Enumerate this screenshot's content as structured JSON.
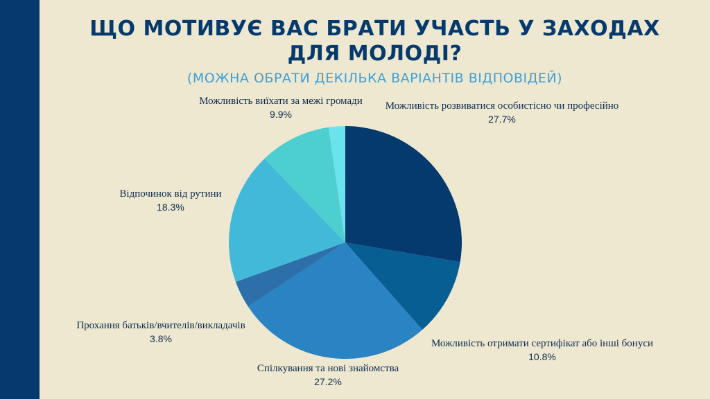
{
  "title_line1": "ЩО МОТИВУЄ ВАС БРАТИ УЧАСТЬ У ЗАХОДАХ",
  "title_line2": "ДЛЯ МОЛОДІ?",
  "subtitle": "(МОЖНА ОБРАТИ ДЕКІЛЬКА ВАРІАНТІВ ВІДПОВІДЕЙ)",
  "colors": {
    "background": "#ede8cf",
    "sidebar": "#063a6e",
    "title": "#063a6e",
    "subtitle": "#3e9fd6"
  },
  "chart_data": {
    "type": "pie",
    "title": "ЩО МОТИВУЄ ВАС БРАТИ УЧАСТЬ У ЗАХОДАХ ДЛЯ МОЛОДІ?",
    "legend": "none",
    "slices": [
      {
        "label": "Можливість розвиватися особистісно чи професійно",
        "value_label": "27.7%",
        "value": 27.7,
        "color": "#053a6e"
      },
      {
        "label": "Можливість отримати сертифікат або інші бонуси",
        "value_label": "10.8%",
        "value": 10.8,
        "color": "#065e92"
      },
      {
        "label": "Спілкування та нові знайомства",
        "value_label": "27.2%",
        "value": 27.2,
        "color": "#2a83c3"
      },
      {
        "label": "Прохання батьків/вчителів/викладачів",
        "value_label": "3.8%",
        "value": 3.8,
        "color": "#2d6fa8"
      },
      {
        "label": "Відпочинок від рутини",
        "value_label": "18.3%",
        "value": 18.3,
        "color": "#42b9d9"
      },
      {
        "label": "Можливість виїхати за межі громади",
        "value_label": "9.9%",
        "value": 9.9,
        "color": "#4ecfcf"
      },
      {
        "label": "",
        "value_label": "",
        "value": 2.3,
        "color": "#6ae3ec"
      }
    ]
  }
}
